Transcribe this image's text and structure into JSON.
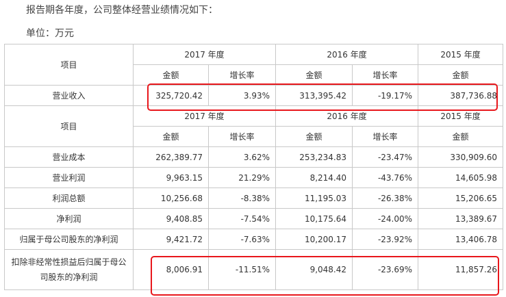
{
  "intro": "报告期各年度，公司整体经营业绩情况如下：",
  "unit": "单位：万元",
  "table1": {
    "item_header": "项目",
    "years": [
      "2017 年度",
      "2016 年度",
      "2015 年度"
    ],
    "amount_label": "金额",
    "growth_label": "增长率",
    "row": {
      "name": "营业收入",
      "cells": [
        "325,720.42",
        "3.93%",
        "313,395.42",
        "-19.17%",
        "387,736.88"
      ]
    }
  },
  "table2": {
    "item_header": "项目",
    "years": [
      "2017 年度",
      "2016 年度",
      "2015 年度"
    ],
    "amount_label": "金额",
    "growth_label": "增长率",
    "rows": [
      {
        "name": "营业成本",
        "cells": [
          "262,389.77",
          "3.62%",
          "253,234.83",
          "-23.47%",
          "330,909.60"
        ]
      },
      {
        "name": "营业利润",
        "cells": [
          "9,963.15",
          "21.29%",
          "8,214.40",
          "-43.76%",
          "14,605.98"
        ]
      },
      {
        "name": "利润总额",
        "cells": [
          "10,256.68",
          "-8.38%",
          "11,195.03",
          "-26.38%",
          "15,206.65"
        ]
      },
      {
        "name": "净利润",
        "cells": [
          "9,408.85",
          "-7.54%",
          "10,175.64",
          "-24.00%",
          "13,389.67"
        ]
      },
      {
        "name": "归属于母公司股东的净利润",
        "cells": [
          "9,421.72",
          "-7.63%",
          "10,200.17",
          "-23.92%",
          "13,406.78"
        ]
      },
      {
        "name": "扣除非经常性损益后归属于母公司股东的净利润",
        "cells": [
          "8,006.91",
          "-11.51%",
          "9,048.42",
          "-23.69%",
          "11,857.26"
        ]
      }
    ]
  },
  "highlight_color": "#e8161b"
}
